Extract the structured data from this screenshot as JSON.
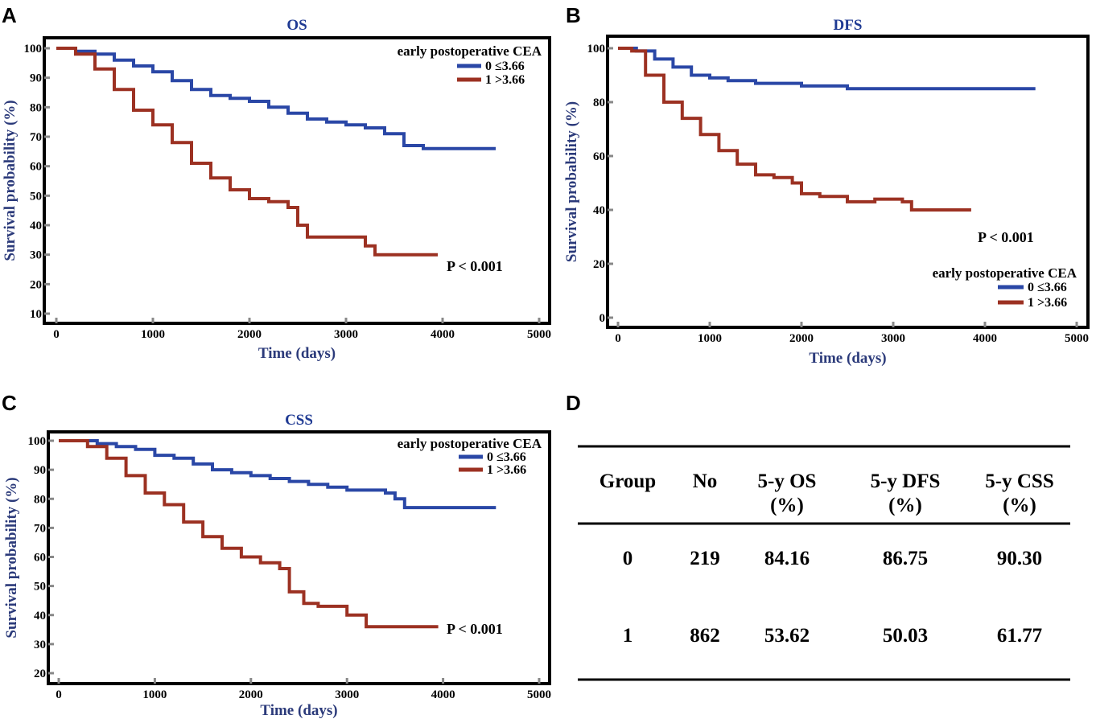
{
  "chart_data": [
    {
      "panel": "A",
      "type": "line",
      "title": "OS",
      "xlabel": "Time (days)",
      "ylabel": "Survival probability (%)",
      "xlim": [
        0,
        5000
      ],
      "ylim": [
        10,
        100
      ],
      "xticks": [
        0,
        1000,
        2000,
        3000,
        4000,
        5000
      ],
      "yticks": [
        10,
        20,
        30,
        40,
        50,
        60,
        70,
        80,
        90,
        100
      ],
      "legend": {
        "title": "early postoperative CEA",
        "position": "top-right"
      },
      "p_value": "P < 0.001",
      "series": [
        {
          "name": "0 ≤3.66",
          "color": "#2a47a6",
          "x": [
            0,
            200,
            400,
            600,
            800,
            1000,
            1200,
            1400,
            1600,
            1800,
            2000,
            2200,
            2400,
            2600,
            2800,
            3000,
            3200,
            3400,
            3600,
            3800,
            4000,
            4200,
            4550
          ],
          "y": [
            100,
            99,
            98,
            96,
            94,
            92,
            89,
            86,
            84,
            83,
            82,
            80,
            78,
            76,
            75,
            74,
            73,
            71,
            67,
            66,
            66,
            66,
            66
          ]
        },
        {
          "name": "1 >3.66",
          "color": "#9c3122",
          "x": [
            0,
            200,
            400,
            600,
            800,
            1000,
            1200,
            1400,
            1600,
            1800,
            2000,
            2200,
            2400,
            2500,
            2600,
            3200,
            3300,
            3950
          ],
          "y": [
            100,
            98,
            93,
            86,
            79,
            74,
            68,
            61,
            56,
            52,
            49,
            48,
            46,
            40,
            36,
            33,
            30,
            30
          ]
        }
      ]
    },
    {
      "panel": "B",
      "type": "line",
      "title": "DFS",
      "xlabel": "Time (days)",
      "ylabel": "Survival probability (%)",
      "xlim": [
        0,
        5000
      ],
      "ylim": [
        0,
        100
      ],
      "xticks": [
        0,
        1000,
        2000,
        3000,
        4000,
        5000
      ],
      "yticks": [
        0,
        20,
        40,
        60,
        80,
        100
      ],
      "legend": {
        "title": "early postoperative CEA",
        "position": "bottom-right"
      },
      "p_value": "P < 0.001",
      "series": [
        {
          "name": "0 ≤3.66",
          "color": "#2a47a6",
          "x": [
            0,
            200,
            400,
            600,
            800,
            1000,
            1200,
            1500,
            2000,
            2500,
            3000,
            3500,
            4000,
            4550
          ],
          "y": [
            100,
            99,
            96,
            93,
            90,
            89,
            88,
            87,
            86,
            85,
            85,
            85,
            85,
            85
          ]
        },
        {
          "name": "1 >3.66",
          "color": "#9c3122",
          "x": [
            0,
            150,
            300,
            500,
            700,
            900,
            1100,
            1300,
            1500,
            1700,
            1900,
            2000,
            2200,
            2500,
            2800,
            3100,
            3200,
            3850
          ],
          "y": [
            100,
            99,
            90,
            80,
            74,
            68,
            62,
            57,
            53,
            52,
            50,
            46,
            45,
            43,
            44,
            43,
            40,
            40
          ]
        }
      ]
    },
    {
      "panel": "C",
      "type": "line",
      "title": "CSS",
      "xlabel": "Time (days)",
      "ylabel": "Survival probability (%)",
      "xlim": [
        0,
        5000
      ],
      "ylim": [
        20,
        100
      ],
      "xticks": [
        0,
        1000,
        2000,
        3000,
        4000,
        5000
      ],
      "yticks": [
        20,
        30,
        40,
        50,
        60,
        70,
        80,
        90,
        100
      ],
      "legend": {
        "title": "early postoperative CEA",
        "position": "top-right"
      },
      "p_value": "P < 0.001",
      "series": [
        {
          "name": "0 ≤3.66",
          "color": "#2a47a6",
          "x": [
            0,
            400,
            600,
            800,
            1000,
            1200,
            1400,
            1600,
            1800,
            2000,
            2200,
            2400,
            2600,
            2800,
            3000,
            3200,
            3400,
            3500,
            3600,
            3800,
            4000,
            4550
          ],
          "y": [
            100,
            99,
            98,
            97,
            95,
            94,
            92,
            90,
            89,
            88,
            87,
            86,
            85,
            84,
            83,
            83,
            82,
            80,
            77,
            77,
            77,
            77
          ]
        },
        {
          "name": "1 >3.66",
          "color": "#9c3122",
          "x": [
            0,
            300,
            500,
            700,
            900,
            1100,
            1300,
            1500,
            1700,
            1900,
            2100,
            2300,
            2400,
            2550,
            2700,
            3000,
            3200,
            3950
          ],
          "y": [
            100,
            98,
            94,
            88,
            82,
            78,
            72,
            67,
            63,
            60,
            58,
            56,
            48,
            44,
            43,
            40,
            36,
            36
          ]
        }
      ]
    }
  ],
  "panel_labels": {
    "A": "A",
    "B": "B",
    "C": "C",
    "D": "D"
  },
  "table": {
    "headers": [
      {
        "line1": "Group",
        "line2": ""
      },
      {
        "line1": "No",
        "line2": ""
      },
      {
        "line1": "5-y OS",
        "line2": "(%)"
      },
      {
        "line1": "5-y DFS",
        "line2": "(%)"
      },
      {
        "line1": "5-y CSS",
        "line2": "(%)"
      }
    ],
    "rows": [
      [
        "0",
        "219",
        "84.16",
        "86.75",
        "90.30"
      ],
      [
        "1",
        "862",
        "53.62",
        "50.03",
        "61.77"
      ]
    ]
  }
}
